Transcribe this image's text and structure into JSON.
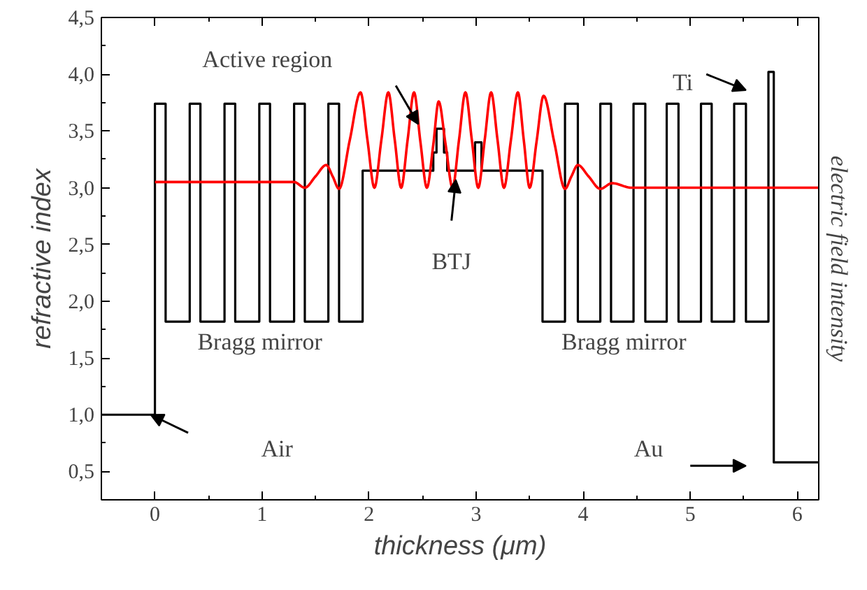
{
  "chart_data": {
    "type": "line",
    "xlabel": "thickness (μm)",
    "ylabel": "refractive index",
    "y2label": "electric field intensity",
    "xlim": [
      -0.5,
      6.2
    ],
    "ylim": [
      0.25,
      4.5
    ],
    "xticks": [
      0,
      1,
      2,
      3,
      4,
      5,
      6
    ],
    "yticks": [
      {
        "value": 0.5,
        "label": "0,5"
      },
      {
        "value": 1.0,
        "label": "1,0"
      },
      {
        "value": 1.5,
        "label": "1,5"
      },
      {
        "value": 2.0,
        "label": "2,0"
      },
      {
        "value": 2.5,
        "label": "2,5"
      },
      {
        "value": 3.0,
        "label": "3,0"
      },
      {
        "value": 3.5,
        "label": "3,5"
      },
      {
        "value": 4.0,
        "label": "4,0"
      },
      {
        "value": 4.5,
        "label": "4,5"
      }
    ],
    "grid": false,
    "series": [
      {
        "type": "step",
        "color": "#000000",
        "x": [
          -0.5,
          0,
          0,
          0.1,
          0.1,
          0.325,
          0.325,
          0.425,
          0.425,
          0.65,
          0.65,
          0.75,
          0.75,
          0.975,
          0.975,
          1.075,
          1.075,
          1.3,
          1.3,
          1.4,
          1.4,
          1.62,
          1.62,
          1.72,
          1.72,
          1.94,
          1.94,
          2.6,
          2.6,
          2.63,
          2.63,
          2.7,
          2.7,
          2.73,
          2.73,
          2.99,
          2.99,
          3.05,
          3.05,
          3.62,
          3.62,
          3.83,
          3.83,
          3.95,
          3.95,
          4.16,
          4.16,
          4.26,
          4.26,
          4.47,
          4.47,
          4.58,
          4.58,
          4.78,
          4.78,
          4.89,
          4.89,
          5.1,
          5.1,
          5.2,
          5.2,
          5.41,
          5.41,
          5.52,
          5.52,
          5.73,
          5.73,
          5.78,
          5.78,
          6.2
        ],
        "values": [
          1.0,
          1.0,
          3.74,
          3.74,
          1.82,
          1.82,
          3.74,
          3.74,
          1.82,
          1.82,
          3.74,
          3.74,
          1.82,
          1.82,
          3.74,
          3.74,
          1.82,
          1.82,
          3.74,
          3.74,
          1.82,
          1.82,
          3.74,
          3.74,
          1.82,
          1.82,
          3.15,
          3.15,
          3.31,
          3.31,
          3.52,
          3.52,
          3.31,
          3.31,
          3.15,
          3.15,
          3.4,
          3.4,
          3.15,
          3.15,
          1.82,
          1.82,
          3.74,
          3.74,
          1.82,
          1.82,
          3.74,
          3.74,
          1.82,
          1.82,
          3.74,
          3.74,
          1.82,
          1.82,
          3.74,
          3.74,
          1.82,
          1.82,
          3.74,
          3.74,
          1.82,
          1.82,
          3.74,
          3.74,
          1.82,
          1.82,
          4.02,
          4.02,
          0.58,
          0.58
        ]
      },
      {
        "color": "#ff0000",
        "x": [
          0,
          1.3,
          1.4,
          1.5,
          1.6,
          1.66,
          1.72,
          1.82,
          1.92,
          1.985,
          2.05,
          2.115,
          2.18,
          2.24,
          2.3,
          2.36,
          2.42,
          2.48,
          2.54,
          2.6,
          2.65,
          2.715,
          2.78,
          2.84,
          2.9,
          2.96,
          3.02,
          3.08,
          3.14,
          3.2,
          3.26,
          3.325,
          3.39,
          3.445,
          3.5,
          3.565,
          3.63,
          3.73,
          3.83,
          3.89,
          3.95,
          4.05,
          4.16,
          4.27,
          4.45,
          6.2
        ],
        "values": [
          3.05,
          3.05,
          3.0,
          3.1,
          3.2,
          3.1,
          2.99,
          3.42,
          3.84,
          3.42,
          3.0,
          3.42,
          3.84,
          3.42,
          3.0,
          3.42,
          3.84,
          3.4,
          3.0,
          3.38,
          3.76,
          3.38,
          3.0,
          3.42,
          3.84,
          3.42,
          3.0,
          3.42,
          3.84,
          3.42,
          3.0,
          3.42,
          3.84,
          3.42,
          3.0,
          3.41,
          3.81,
          3.4,
          2.99,
          3.1,
          3.2,
          3.1,
          2.99,
          3.04,
          3.0,
          3.0
        ]
      }
    ],
    "annotations": [
      "Active region",
      "Bragg mirror",
      "Air",
      {
        "text": "BTJ",
        "x": 2.81,
        "y": 3.07
      },
      "Bragg mirror",
      "Ti",
      "Au"
    ]
  }
}
